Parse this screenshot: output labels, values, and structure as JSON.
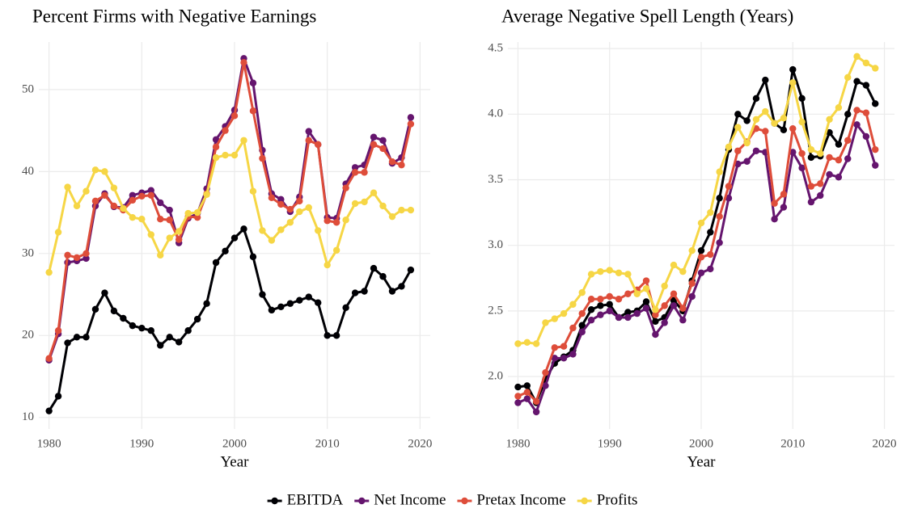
{
  "chart_data": [
    {
      "type": "line",
      "title": "Percent Firms with Negative Earnings",
      "xlabel": "Year",
      "x": [
        1980,
        1981,
        1982,
        1983,
        1984,
        1985,
        1986,
        1987,
        1988,
        1989,
        1990,
        1991,
        1992,
        1993,
        1994,
        1995,
        1996,
        1997,
        1998,
        1999,
        2000,
        2001,
        2002,
        2003,
        2004,
        2005,
        2006,
        2007,
        2008,
        2009,
        2010,
        2011,
        2012,
        2013,
        2014,
        2015,
        2016,
        2017,
        2018,
        2019
      ],
      "xlim": [
        1978.9,
        2021.1
      ],
      "xticks": [
        1980,
        1990,
        2000,
        2010,
        2020
      ],
      "ylim": [
        8.6,
        55.8
      ],
      "yticks": [
        10,
        20,
        30,
        40,
        50
      ],
      "grid": true,
      "series": [
        {
          "name": "EBITDA",
          "color": "#000004",
          "values": [
            10.8,
            12.6,
            19.1,
            19.8,
            19.8,
            23.2,
            25.2,
            23.0,
            22.1,
            21.2,
            20.9,
            20.6,
            18.8,
            19.8,
            19.2,
            20.6,
            22.0,
            23.9,
            28.9,
            30.3,
            31.9,
            33.0,
            29.6,
            25.0,
            23.1,
            23.5,
            23.9,
            24.3,
            24.7,
            24.0,
            20.0,
            20.0,
            23.4,
            25.2,
            25.4,
            28.2,
            27.2,
            25.4,
            26.0,
            28.0
          ]
        },
        {
          "name": "Net Income",
          "color": "#65156e",
          "values": [
            17.0,
            20.2,
            28.9,
            29.1,
            29.4,
            35.8,
            37.3,
            35.7,
            35.6,
            37.1,
            37.4,
            37.7,
            36.2,
            35.3,
            31.3,
            34.3,
            34.9,
            37.9,
            43.9,
            45.5,
            47.5,
            53.8,
            50.8,
            42.6,
            37.3,
            36.6,
            35.1,
            36.9,
            44.9,
            43.3,
            34.4,
            34.3,
            38.5,
            40.5,
            40.8,
            44.2,
            43.8,
            41.0,
            41.7,
            46.6
          ]
        },
        {
          "name": "Pretax Income",
          "color": "#de4d3a",
          "values": [
            17.2,
            20.6,
            29.8,
            29.5,
            30.0,
            36.4,
            37.1,
            35.8,
            35.3,
            36.5,
            37.0,
            37.1,
            34.2,
            34.1,
            31.7,
            34.5,
            34.4,
            37.3,
            43.0,
            45.0,
            46.8,
            53.3,
            47.4,
            41.6,
            36.8,
            36.0,
            35.4,
            36.4,
            43.8,
            43.3,
            34.0,
            33.8,
            38.0,
            39.9,
            39.9,
            43.3,
            42.8,
            41.2,
            40.8,
            45.8
          ]
        },
        {
          "name": "Profits",
          "color": "#f6d645",
          "values": [
            27.7,
            32.6,
            38.1,
            35.8,
            37.6,
            40.2,
            40.0,
            38.0,
            35.5,
            34.4,
            34.2,
            32.3,
            29.8,
            31.9,
            32.7,
            34.9,
            35.0,
            37.2,
            41.7,
            42.0,
            42.0,
            43.8,
            37.6,
            32.8,
            31.6,
            32.9,
            33.8,
            35.1,
            35.6,
            32.8,
            28.6,
            30.4,
            34.1,
            36.1,
            36.3,
            37.4,
            35.8,
            34.5,
            35.3,
            35.3
          ]
        }
      ]
    },
    {
      "type": "line",
      "title": "Average Negative Spell Length (Years)",
      "xlabel": "Year",
      "x": [
        1980,
        1981,
        1982,
        1983,
        1984,
        1985,
        1986,
        1987,
        1988,
        1989,
        1990,
        1991,
        1992,
        1993,
        1994,
        1995,
        1996,
        1997,
        1998,
        1999,
        2000,
        2001,
        2002,
        2003,
        2004,
        2005,
        2006,
        2007,
        2008,
        2009,
        2010,
        2011,
        2012,
        2013,
        2014,
        2015,
        2016,
        2017,
        2018,
        2019
      ],
      "xlim": [
        1978.9,
        2021.1
      ],
      "xticks": [
        1980,
        1990,
        2000,
        2010,
        2020
      ],
      "ylim": [
        1.6,
        4.55
      ],
      "yticks": [
        {
          "value": 2,
          "label": "2.0"
        },
        2.5,
        {
          "value": 3,
          "label": "3.0"
        },
        3.5,
        {
          "value": 4,
          "label": "4.0"
        },
        4.5
      ],
      "grid": true,
      "series": [
        {
          "name": "EBITDA",
          "color": "#000004",
          "values": [
            1.92,
            1.93,
            1.8,
            1.98,
            2.1,
            2.15,
            2.2,
            2.39,
            2.51,
            2.54,
            2.55,
            2.45,
            2.49,
            2.5,
            2.57,
            2.42,
            2.45,
            2.58,
            2.5,
            2.73,
            2.96,
            3.1,
            3.36,
            3.73,
            4.0,
            3.95,
            4.12,
            4.26,
            3.93,
            3.88,
            4.34,
            4.12,
            3.67,
            3.68,
            3.86,
            3.77,
            4.0,
            4.25,
            4.22,
            4.08
          ]
        },
        {
          "name": "Net Income",
          "color": "#65156e",
          "values": [
            1.8,
            1.83,
            1.73,
            1.93,
            2.14,
            2.14,
            2.17,
            2.34,
            2.43,
            2.47,
            2.5,
            2.45,
            2.45,
            2.48,
            2.52,
            2.32,
            2.41,
            2.54,
            2.43,
            2.61,
            2.79,
            2.82,
            3.02,
            3.36,
            3.62,
            3.64,
            3.72,
            3.71,
            3.2,
            3.29,
            3.71,
            3.59,
            3.33,
            3.38,
            3.54,
            3.52,
            3.66,
            3.92,
            3.83,
            3.61
          ]
        },
        {
          "name": "Pretax Income",
          "color": "#de4d3a",
          "values": [
            1.85,
            1.88,
            1.81,
            2.03,
            2.22,
            2.23,
            2.37,
            2.48,
            2.59,
            2.59,
            2.61,
            2.59,
            2.63,
            2.66,
            2.73,
            2.47,
            2.54,
            2.63,
            2.52,
            2.71,
            2.91,
            2.93,
            3.22,
            3.45,
            3.72,
            3.79,
            3.89,
            3.87,
            3.32,
            3.39,
            3.89,
            3.7,
            3.45,
            3.47,
            3.67,
            3.65,
            3.8,
            4.03,
            4.01,
            3.73
          ]
        },
        {
          "name": "Profits",
          "color": "#f6d645",
          "values": [
            2.25,
            2.26,
            2.25,
            2.41,
            2.44,
            2.48,
            2.55,
            2.64,
            2.78,
            2.8,
            2.81,
            2.79,
            2.78,
            2.63,
            2.67,
            2.51,
            2.69,
            2.85,
            2.8,
            2.96,
            3.17,
            3.25,
            3.56,
            3.75,
            3.9,
            3.78,
            3.96,
            4.02,
            3.93,
            3.97,
            4.24,
            3.94,
            3.73,
            3.7,
            3.96,
            4.05,
            4.28,
            4.44,
            4.39,
            4.35
          ]
        }
      ]
    }
  ]
}
